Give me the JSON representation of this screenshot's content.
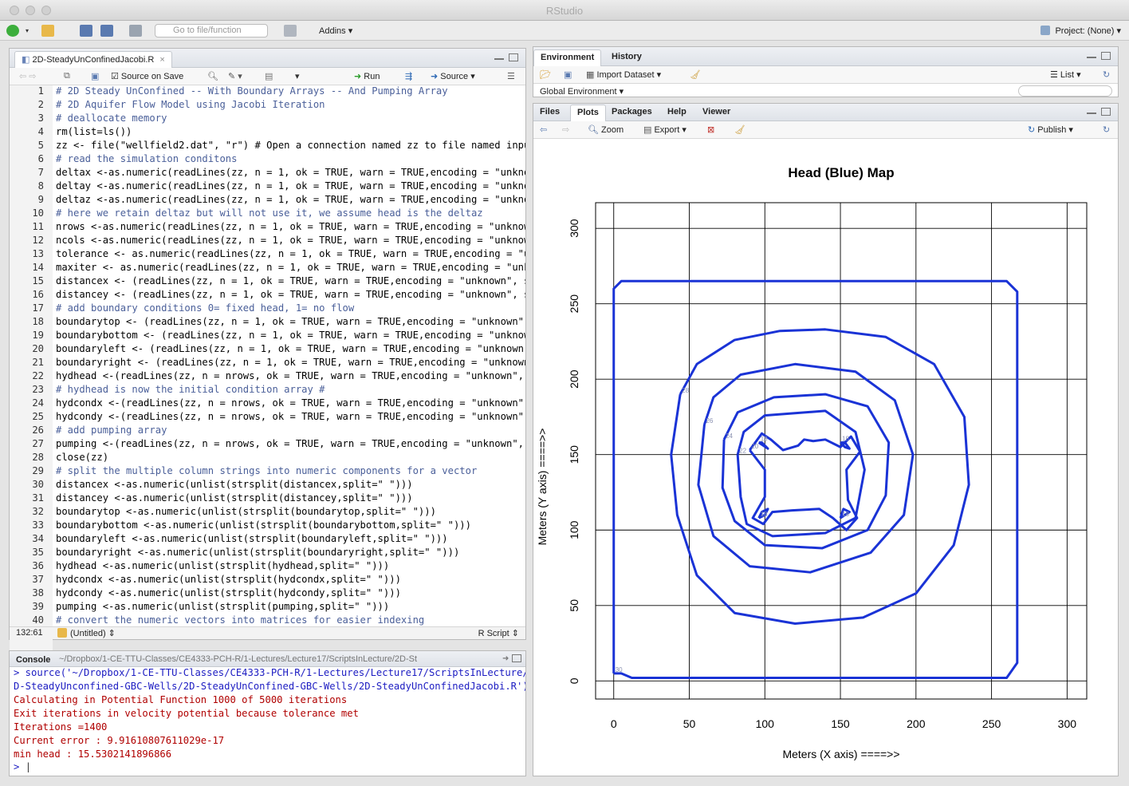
{
  "window": {
    "title": "RStudio"
  },
  "toolbar": {
    "goto_placeholder": "Go to file/function",
    "addins_label": "Addins",
    "project_label": "Project: (None)"
  },
  "editor": {
    "tab_title": "2D-SteadyUnConfinedJacobi.R",
    "source_on_save": "Source on Save",
    "run_label": "Run",
    "source_label": "Source",
    "cursor_pos": "132:61",
    "scope": "(Untitled)",
    "file_type": "R Script",
    "lines": [
      {
        "n": "1",
        "t": "# 2D Steady UnConfined -- With Boundary Arrays -- And Pumping Array",
        "c": "cmt"
      },
      {
        "n": "2",
        "t": "# 2D Aquifer Flow Model using Jacobi Iteration",
        "c": "cmt"
      },
      {
        "n": "3",
        "t": "# deallocate memory",
        "c": "cmt"
      },
      {
        "n": "4",
        "t": "rm(list=ls())",
        "c": ""
      },
      {
        "n": "5",
        "t": "zz <- file(\"wellfield2.dat\", \"r\") # Open a connection named zz to file named input",
        "c": ""
      },
      {
        "n": "6",
        "t": "# read the simulation conditons",
        "c": "cmt"
      },
      {
        "n": "7",
        "t": "deltax <-as.numeric(readLines(zz, n = 1, ok = TRUE, warn = TRUE,encoding = \"unknow",
        "c": ""
      },
      {
        "n": "8",
        "t": "deltay <-as.numeric(readLines(zz, n = 1, ok = TRUE, warn = TRUE,encoding = \"unknow",
        "c": ""
      },
      {
        "n": "9",
        "t": "deltaz <-as.numeric(readLines(zz, n = 1, ok = TRUE, warn = TRUE,encoding = \"unknow",
        "c": ""
      },
      {
        "n": "10",
        "t": "# here we retain deltaz but will not use it, we assume head is the deltaz",
        "c": "cmt"
      },
      {
        "n": "11",
        "t": "nrows <-as.numeric(readLines(zz, n = 1, ok = TRUE, warn = TRUE,encoding = \"unknown",
        "c": ""
      },
      {
        "n": "12",
        "t": "ncols <-as.numeric(readLines(zz, n = 1, ok = TRUE, warn = TRUE,encoding = \"unknown",
        "c": ""
      },
      {
        "n": "13",
        "t": "tolerance <- as.numeric(readLines(zz, n = 1, ok = TRUE, warn = TRUE,encoding = \"ur",
        "c": ""
      },
      {
        "n": "14",
        "t": "maxiter <- as.numeric(readLines(zz, n = 1, ok = TRUE, warn = TRUE,encoding = \"unkr",
        "c": ""
      },
      {
        "n": "15",
        "t": "distancex <- (readLines(zz, n = 1, ok = TRUE, warn = TRUE,encoding = \"unknown\", sk",
        "c": ""
      },
      {
        "n": "16",
        "t": "distancey <- (readLines(zz, n = 1, ok = TRUE, warn = TRUE,encoding = \"unknown\", sk",
        "c": ""
      },
      {
        "n": "17",
        "t": "# add boundary conditions 0= fixed head, 1= no flow",
        "c": "cmt"
      },
      {
        "n": "18",
        "t": "boundarytop <- (readLines(zz, n = 1, ok = TRUE, warn = TRUE,encoding = \"unknown\",",
        "c": ""
      },
      {
        "n": "19",
        "t": "boundarybottom <- (readLines(zz, n = 1, ok = TRUE, warn = TRUE,encoding = \"unknowr",
        "c": ""
      },
      {
        "n": "20",
        "t": "boundaryleft <- (readLines(zz, n = 1, ok = TRUE, warn = TRUE,encoding = \"unknown\",",
        "c": ""
      },
      {
        "n": "21",
        "t": "boundaryright <- (readLines(zz, n = 1, ok = TRUE, warn = TRUE,encoding = \"unknown\"",
        "c": ""
      },
      {
        "n": "22",
        "t": "hydhead <-(readLines(zz, n = nrows, ok = TRUE, warn = TRUE,encoding = \"unknown\", s",
        "c": ""
      },
      {
        "n": "23",
        "t": "# hydhead is now the initial condition array #",
        "c": "cmt"
      },
      {
        "n": "24",
        "t": "hydcondx <-(readLines(zz, n = nrows, ok = TRUE, warn = TRUE,encoding = \"unknown\",",
        "c": ""
      },
      {
        "n": "25",
        "t": "hydcondy <-(readLines(zz, n = nrows, ok = TRUE, warn = TRUE,encoding = \"unknown\",",
        "c": ""
      },
      {
        "n": "26",
        "t": "# add pumping array",
        "c": "cmt"
      },
      {
        "n": "27",
        "t": "pumping <-(readLines(zz, n = nrows, ok = TRUE, warn = TRUE,encoding = \"unknown\", s",
        "c": ""
      },
      {
        "n": "28",
        "t": "close(zz)",
        "c": ""
      },
      {
        "n": "29",
        "t": "# split the multiple column strings into numeric components for a vector",
        "c": "cmt"
      },
      {
        "n": "30",
        "t": "distancex <-as.numeric(unlist(strsplit(distancex,split=\" \")))",
        "c": ""
      },
      {
        "n": "31",
        "t": "distancey <-as.numeric(unlist(strsplit(distancey,split=\" \")))",
        "c": ""
      },
      {
        "n": "32",
        "t": "boundarytop <-as.numeric(unlist(strsplit(boundarytop,split=\" \")))",
        "c": ""
      },
      {
        "n": "33",
        "t": "boundarybottom <-as.numeric(unlist(strsplit(boundarybottom,split=\" \")))",
        "c": ""
      },
      {
        "n": "34",
        "t": "boundaryleft <-as.numeric(unlist(strsplit(boundaryleft,split=\" \")))",
        "c": ""
      },
      {
        "n": "35",
        "t": "boundaryright <-as.numeric(unlist(strsplit(boundaryright,split=\" \")))",
        "c": ""
      },
      {
        "n": "36",
        "t": "hydhead <-as.numeric(unlist(strsplit(hydhead,split=\" \")))",
        "c": ""
      },
      {
        "n": "37",
        "t": "hydcondx <-as.numeric(unlist(strsplit(hydcondx,split=\" \")))",
        "c": ""
      },
      {
        "n": "38",
        "t": "hydcondy <-as.numeric(unlist(strsplit(hydcondy,split=\" \")))",
        "c": ""
      },
      {
        "n": "39",
        "t": "pumping <-as.numeric(unlist(strsplit(pumping,split=\" \")))",
        "c": ""
      },
      {
        "n": "40",
        "t": "# convert the numeric vectors into matrices for easier indexing",
        "c": "cmt"
      }
    ]
  },
  "console": {
    "tab_title": "Console",
    "path": "~/Dropbox/1-CE-TTU-Classes/CE4333-PCH-R/1-Lectures/Lecture17/ScriptsInLecture/2D-St",
    "lines": [
      {
        "t": "> source('~/Dropbox/1-CE-TTU-Classes/CE4333-PCH-R/1-Lectures/Lecture17/ScriptsInLecture/2",
        "c": "#1c1cc2"
      },
      {
        "t": "D-SteadyUnconfined-GBC-Wells/2D-SteadyUnConfined-GBC-Wells/2D-SteadyUnConfinedJacobi.R')",
        "c": "#1c1cc2"
      },
      {
        "t": "Calculating in Potential Function 1000 of 5000 iterations",
        "c": "#b00000"
      },
      {
        "t": "Exit iterations in velocity potential because tolerance met",
        "c": "#b00000"
      },
      {
        "t": "Iterations =1400",
        "c": "#b00000"
      },
      {
        "t": "Current error : 9.91610807611029e-17",
        "c": "#b00000"
      },
      {
        "t": "min head : 15.5302141896866",
        "c": "#b00000"
      }
    ],
    "prompt": ">"
  },
  "environment": {
    "tabs": [
      "Environment",
      "History"
    ],
    "import_label": "Import Dataset",
    "list_label": "List",
    "global_env": "Global Environment"
  },
  "plots_pane": {
    "tabs": [
      "Files",
      "Plots",
      "Packages",
      "Help",
      "Viewer"
    ],
    "zoom_label": "Zoom",
    "export_label": "Export",
    "publish_label": "Publish"
  },
  "chart_data": {
    "type": "contour",
    "title": "Head (Blue) Map",
    "xlabel": "Meters (X axis) ====>>",
    "ylabel": "Meters (Y axis) ====>>",
    "xlim": [
      -12,
      313
    ],
    "ylim": [
      -12,
      317
    ],
    "xticks": [
      0,
      50,
      100,
      150,
      200,
      250,
      300
    ],
    "yticks": [
      0,
      50,
      100,
      150,
      200,
      250,
      300
    ],
    "grid_x": [
      0,
      50,
      100,
      150,
      200,
      250,
      300
    ],
    "grid_y": [
      0,
      50,
      100,
      150,
      200,
      250,
      300
    ],
    "line_color": "#1a33d6",
    "contour_labels": [
      "30",
      "28",
      "26",
      "24",
      "22",
      "20",
      "18"
    ],
    "contours": [
      {
        "level": "30",
        "points": [
          [
            0,
            5
          ],
          [
            0,
            260
          ],
          [
            5,
            265
          ],
          [
            260,
            265
          ],
          [
            267,
            258
          ],
          [
            267,
            12
          ],
          [
            260,
            2
          ],
          [
            12,
            2
          ],
          [
            5,
            5
          ],
          [
            0,
            5
          ]
        ]
      },
      {
        "level": "28",
        "points": [
          [
            44,
            190
          ],
          [
            55,
            210
          ],
          [
            80,
            226
          ],
          [
            110,
            232
          ],
          [
            140,
            233
          ],
          [
            180,
            228
          ],
          [
            212,
            210
          ],
          [
            232,
            175
          ],
          [
            235,
            130
          ],
          [
            225,
            90
          ],
          [
            200,
            58
          ],
          [
            165,
            42
          ],
          [
            120,
            38
          ],
          [
            80,
            45
          ],
          [
            55,
            70
          ],
          [
            42,
            110
          ],
          [
            38,
            150
          ],
          [
            44,
            190
          ]
        ]
      },
      {
        "level": "26",
        "points": [
          [
            60,
            170
          ],
          [
            66,
            188
          ],
          [
            84,
            203
          ],
          [
            120,
            210
          ],
          [
            160,
            205
          ],
          [
            186,
            186
          ],
          [
            198,
            150
          ],
          [
            192,
            110
          ],
          [
            170,
            85
          ],
          [
            130,
            72
          ],
          [
            90,
            76
          ],
          [
            66,
            96
          ],
          [
            56,
            130
          ],
          [
            60,
            170
          ]
        ]
      },
      {
        "level": "24",
        "points": [
          [
            73,
            160
          ],
          [
            82,
            178
          ],
          [
            106,
            188
          ],
          [
            140,
            190
          ],
          [
            168,
            182
          ],
          [
            182,
            158
          ],
          [
            180,
            123
          ],
          [
            168,
            100
          ],
          [
            138,
            88
          ],
          [
            100,
            90
          ],
          [
            80,
            106
          ],
          [
            72,
            128
          ],
          [
            73,
            160
          ]
        ]
      },
      {
        "level": "22",
        "points": [
          [
            82,
            150
          ],
          [
            86,
            165
          ],
          [
            100,
            176
          ],
          [
            140,
            179
          ],
          [
            160,
            165
          ],
          [
            166,
            140
          ],
          [
            160,
            108
          ],
          [
            140,
            98
          ],
          [
            105,
            96
          ],
          [
            88,
            104
          ],
          [
            84,
            122
          ],
          [
            82,
            150
          ]
        ]
      },
      {
        "level": "20",
        "points": [
          [
            90,
            153
          ],
          [
            98,
            164
          ],
          [
            104,
            160
          ],
          [
            112,
            153
          ],
          [
            122,
            156
          ],
          [
            126,
            160
          ],
          [
            132,
            159
          ],
          [
            140,
            160
          ],
          [
            150,
            155
          ],
          [
            157,
            162
          ],
          [
            163,
            152
          ],
          [
            154,
            140
          ],
          [
            155,
            120
          ],
          [
            161,
            108
          ],
          [
            154,
            100
          ],
          [
            145,
            108
          ],
          [
            136,
            114
          ],
          [
            118,
            113
          ],
          [
            105,
            112
          ],
          [
            99,
            104
          ],
          [
            92,
            108
          ],
          [
            100,
            122
          ],
          [
            100,
            140
          ],
          [
            90,
            153
          ]
        ]
      },
      {
        "level": "18",
        "points": [
          [
            96,
            158
          ],
          [
            99,
            156
          ],
          [
            102,
            154
          ],
          [
            98,
            158
          ],
          [
            96,
            158
          ]
        ]
      },
      {
        "level": "18",
        "points": [
          [
            150,
            158
          ],
          [
            153,
            155
          ],
          [
            156,
            154
          ],
          [
            153,
            158
          ],
          [
            150,
            158
          ]
        ]
      },
      {
        "level": "18",
        "points": [
          [
            96,
            108
          ],
          [
            100,
            110
          ],
          [
            102,
            114
          ],
          [
            98,
            112
          ],
          [
            96,
            108
          ]
        ]
      },
      {
        "level": "18",
        "points": [
          [
            150,
            108
          ],
          [
            153,
            110
          ],
          [
            156,
            112
          ],
          [
            152,
            114
          ],
          [
            150,
            108
          ]
        ]
      }
    ]
  }
}
